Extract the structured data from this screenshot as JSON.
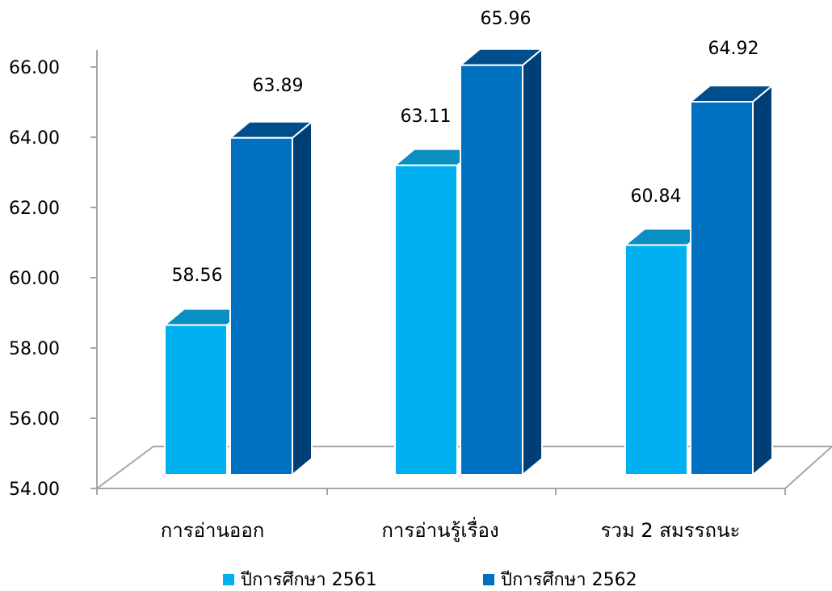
{
  "chart_data": {
    "type": "bar",
    "categories": [
      "การอ่านออก",
      "การอ่านรู้เรื่อง",
      "รวม 2 สมรรถนะ"
    ],
    "series": [
      {
        "name": "ปีการศึกษา 2561",
        "values": [
          58.56,
          63.11,
          60.84
        ]
      },
      {
        "name": "ปีการศึกษา 2562",
        "values": [
          63.89,
          65.96,
          64.92
        ]
      }
    ],
    "data_labels": {
      "s0": [
        "58.56",
        "63.11",
        "60.84"
      ],
      "s1": [
        "63.89",
        "65.96",
        "64.92"
      ]
    },
    "y_ticks": [
      "54.00",
      "56.00",
      "58.00",
      "60.00",
      "62.00",
      "64.00",
      "66.00"
    ],
    "ylim": [
      54,
      66
    ],
    "grid": false,
    "legend_position": "bottom",
    "style": "3d-clustered-column",
    "colors": {
      "s0_front": "#00B0F0",
      "s0_top": "#0A8FC2",
      "s0_side": "#0A7FAE",
      "s1_front": "#0070C0",
      "s1_top": "#004E8C",
      "s1_side": "#003F73",
      "axis": "#A6A6A6"
    }
  }
}
